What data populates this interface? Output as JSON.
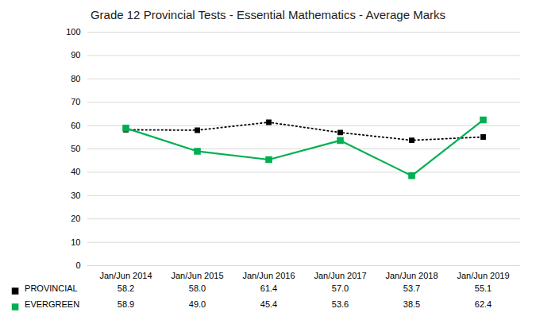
{
  "chart_data": {
    "type": "line",
    "title": "Grade 12 Provincial Tests - Essential Mathematics - Average Marks",
    "categories": [
      "Jan/Jun 2014",
      "Jan/Jun 2015",
      "Jan/Jun 2016",
      "Jan/Jun 2017",
      "Jan/Jun 2018",
      "Jan/Jun 2019"
    ],
    "series": [
      {
        "name": "PROVINCIAL",
        "color": "#000000",
        "marker": "square",
        "line_style": "dotted",
        "values": [
          58.2,
          58.0,
          61.4,
          57.0,
          53.7,
          55.1
        ],
        "value_labels": [
          "58.2",
          "58.0",
          "61.4",
          "57.0",
          "53.7",
          "55.1"
        ]
      },
      {
        "name": "EVERGREEN",
        "color": "#00b050",
        "marker": "square",
        "line_style": "solid",
        "values": [
          58.9,
          49.0,
          45.4,
          53.6,
          38.5,
          62.4
        ],
        "value_labels": [
          "58.9",
          "49.0",
          "45.4",
          "53.6",
          "38.5",
          "62.4"
        ]
      }
    ],
    "ylim": [
      0,
      100
    ],
    "yticks": [
      0,
      10,
      20,
      30,
      40,
      50,
      60,
      70,
      80,
      90,
      100
    ],
    "grid": true,
    "legend": "bottom",
    "data_labels": true
  }
}
